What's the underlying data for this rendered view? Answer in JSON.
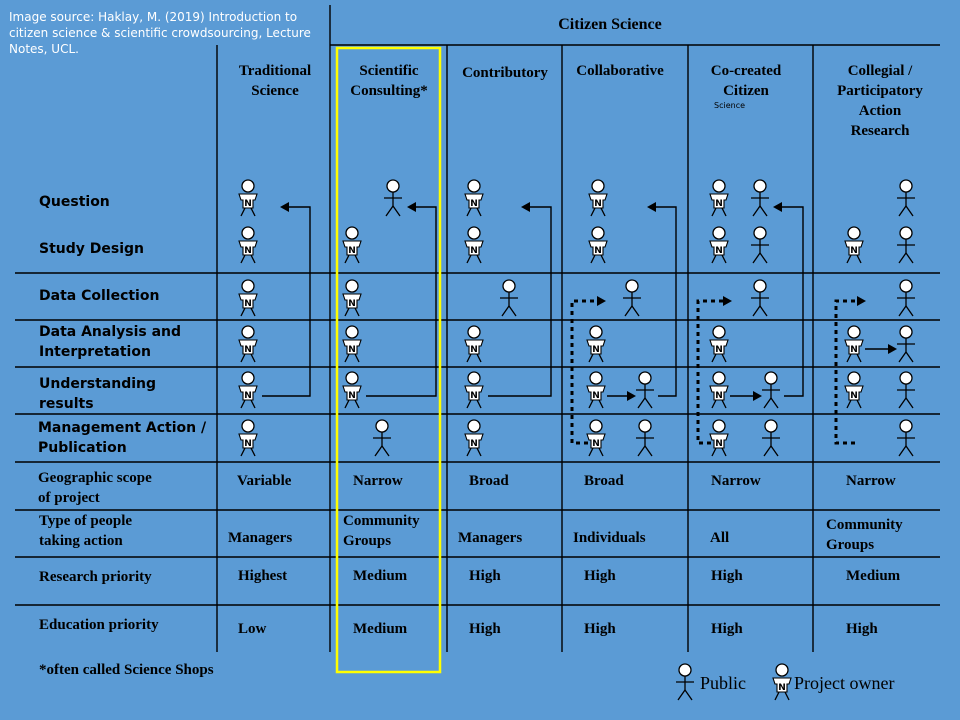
{
  "source_note": "Image source: Haklay, M. (2019) Introduction to citizen science & scientific crowdsourcing, Lecture Notes, UCL.",
  "citizen_science_header": "Citizen Science",
  "columns": [
    {
      "title": "Traditional\nScience"
    },
    {
      "title": "Scientific\nConsulting*"
    },
    {
      "title": "Contributory"
    },
    {
      "title": "Collaborative"
    },
    {
      "title": "Co-created\nCitizen",
      "subtitle": "Science"
    },
    {
      "title": "Collegial /\nParticipatory\nAction\nResearch"
    }
  ],
  "rows": [
    {
      "label": "Question"
    },
    {
      "label": "Study Design"
    },
    {
      "label": "Data Collection"
    },
    {
      "label": "Data Analysis and\nInterpretation"
    },
    {
      "label": "Understanding\nresults"
    },
    {
      "label": "Management Action /\nPublication"
    },
    {
      "label": "Geographic scope\nof project",
      "values": [
        "Variable",
        "Narrow",
        "Broad",
        "Broad",
        "Narrow",
        "Narrow"
      ]
    },
    {
      "label": "Type of people\ntaking action",
      "values": [
        "Managers",
        "Community\nGroups",
        "Managers",
        "Individuals",
        "All",
        "Community\nGroups"
      ]
    },
    {
      "label": "Research priority",
      "values": [
        "Highest",
        "Medium",
        "High",
        "High",
        "High",
        "Medium"
      ]
    },
    {
      "label": "Education priority",
      "values": [
        "Low",
        "Medium",
        "High",
        "High",
        "High",
        "High"
      ]
    }
  ],
  "footnote": "*often called Science Shops",
  "legend": [
    {
      "icon": "public-figure-icon",
      "label": "Public"
    },
    {
      "icon": "project-owner-figure-icon",
      "label": "Project owner"
    }
  ],
  "owner_mark": "N",
  "colors": {
    "background": "#5b9bd5",
    "highlight": "#ffff00",
    "lines": "#000000"
  }
}
